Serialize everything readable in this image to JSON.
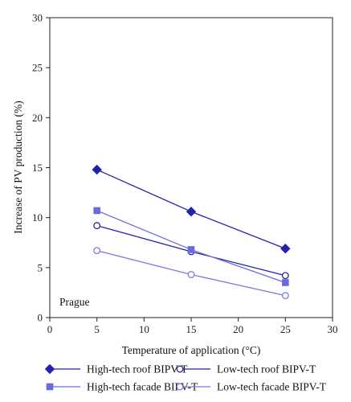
{
  "chart_data": {
    "type": "line",
    "xlabel": "Temperature of application (°C)",
    "ylabel": "Increase of PV production (%)",
    "xlim": [
      0,
      30
    ],
    "ylim": [
      0,
      30
    ],
    "xticks": [
      0,
      5,
      10,
      15,
      20,
      25,
      30
    ],
    "yticks": [
      0,
      5,
      10,
      15,
      20,
      25,
      30
    ],
    "x_tick_labels": [
      "0",
      "5",
      "10",
      "15",
      "20",
      "25",
      "30"
    ],
    "y_tick_labels": [
      "0",
      "5",
      "10",
      "15",
      "20",
      "25",
      "30"
    ],
    "grid": false,
    "annotation": "Prague",
    "annotation_placement": "bottom-left",
    "legend_placement": "bottom-outside",
    "x": [
      5,
      15,
      25
    ],
    "series": [
      {
        "name": "High-tech roof BIPV-T",
        "values": [
          14.8,
          10.6,
          6.9
        ],
        "marker": "diamond-filled",
        "color": "#2222b0"
      },
      {
        "name": "Low-tech roof BIPV-T",
        "values": [
          9.2,
          6.6,
          4.2
        ],
        "marker": "circle-open",
        "color": "#2222b0"
      },
      {
        "name": "High-tech facade BIPV-T",
        "values": [
          10.7,
          6.8,
          3.5
        ],
        "marker": "square-filled",
        "color": "#6b6be0"
      },
      {
        "name": "Low-tech facade BIPV-T",
        "values": [
          6.7,
          4.3,
          2.2
        ],
        "marker": "circle-open",
        "color": "#7b7bdc"
      }
    ]
  }
}
